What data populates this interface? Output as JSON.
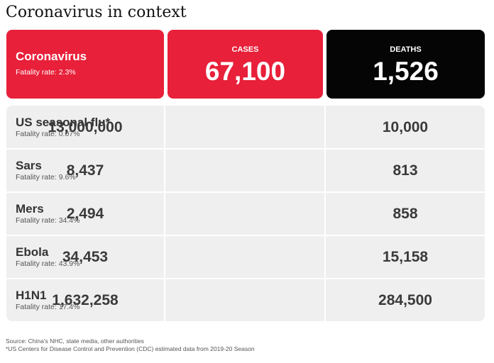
{
  "title": "Coronavirus in context",
  "columns": {
    "cases": "CASES",
    "deaths": "DEATHS"
  },
  "highlight": {
    "name": "Coronavirus",
    "fatality": "Fatality rate: 2.3%",
    "cases": "67,100",
    "deaths": "1,526"
  },
  "rows": [
    {
      "name": "US seasonal flu*",
      "fatality": "Fatality rate: 0.07%",
      "cases": "13,000,000",
      "deaths": "10,000"
    },
    {
      "name": "Sars",
      "fatality": "Fatality rate: 9.6%",
      "cases": "8,437",
      "deaths": "813"
    },
    {
      "name": "Mers",
      "fatality": "Fatality rate: 34.4%",
      "cases": "2,494",
      "deaths": "858"
    },
    {
      "name": "Ebola",
      "fatality": "Fatality rate: 43.9%",
      "cases": "34,453",
      "deaths": "15,158"
    },
    {
      "name": "H1N1",
      "fatality": "Fatality rate: 17.4%",
      "cases": "1,632,258",
      "deaths": "284,500"
    }
  ],
  "footnotes": {
    "source": "Source: China's NHC, state media, other authorities",
    "note": "*US Centers for Disease Control and Prevention (CDC) estimated data from 2019-20 Season"
  },
  "colors": {
    "accent": "#e8203a",
    "dark": "#050505",
    "row": "#efefef"
  },
  "chart_data": {
    "type": "table",
    "title": "Coronavirus in context",
    "columns": [
      "",
      "CASES",
      "DEATHS"
    ],
    "rows": [
      [
        "Coronavirus",
        67100,
        1526
      ],
      [
        "US seasonal flu*",
        13000000,
        10000
      ],
      [
        "Sars",
        8437,
        813
      ],
      [
        "Mers",
        2494,
        858
      ],
      [
        "Ebola",
        34453,
        15158
      ],
      [
        "H1N1",
        1632258,
        284500
      ]
    ]
  }
}
